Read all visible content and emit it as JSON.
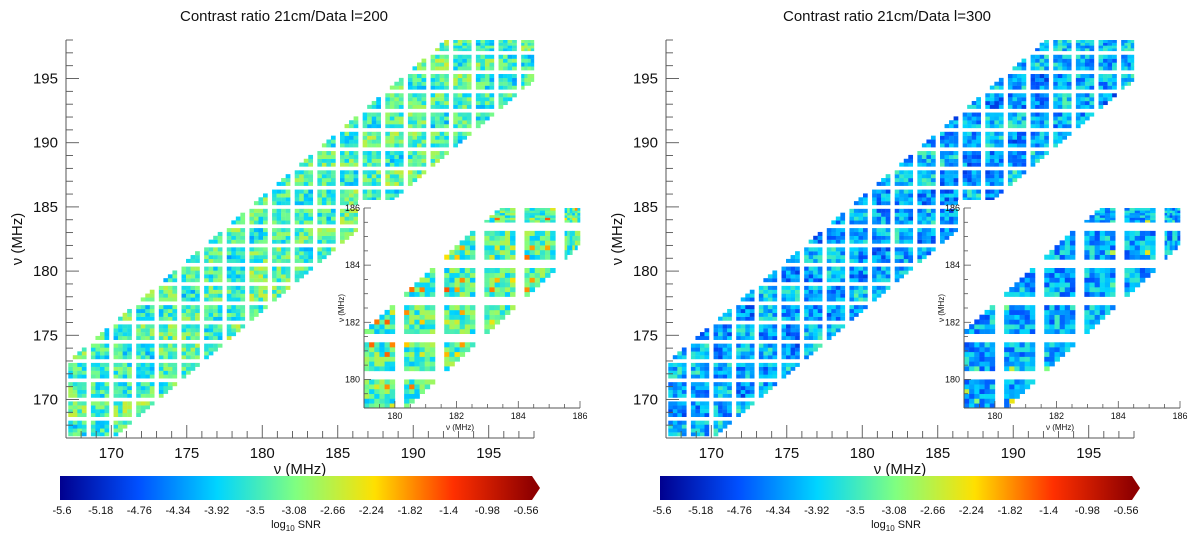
{
  "chart_data": [
    {
      "type": "heatmap",
      "title": "Contrast ratio 21cm/Data l=200",
      "xlabel": "ν (MHz)",
      "ylabel": "ν (MHz)",
      "xlim": [
        167,
        198
      ],
      "ylim": [
        167,
        198
      ],
      "xticks": [
        170,
        175,
        180,
        185,
        190,
        195
      ],
      "yticks": [
        170,
        175,
        180,
        185,
        190,
        195
      ],
      "mean_log10_snr": -3.3,
      "inset": {
        "xlabel": "ν (MHz)",
        "ylabel": "ν (MHz)",
        "xlim": [
          179,
          186
        ],
        "ylim": [
          179,
          186
        ],
        "xticks": [
          180,
          182,
          184,
          186
        ],
        "yticks": [
          180,
          182,
          184,
          186
        ]
      },
      "colorbar": {
        "label": "log10 SNR",
        "range": [
          -5.6,
          -0.35
        ],
        "ticks": [
          "-5.6",
          "-5.18",
          "-4.76",
          "-4.34",
          "-3.92",
          "-3.5",
          "-3.08",
          "-2.66",
          "-2.24",
          "-1.82",
          "-1.4",
          "-0.98",
          "-0.56"
        ],
        "colors": [
          "#00008f",
          "#0050ff",
          "#00d5ff",
          "#80ff80",
          "#ffe000",
          "#ff3000",
          "#8f0000"
        ]
      }
    },
    {
      "type": "heatmap",
      "title": "Contrast ratio 21cm/Data l=300",
      "xlabel": "ν (MHz)",
      "ylabel": "ν (MHz)",
      "xlim": [
        167,
        198
      ],
      "ylim": [
        167,
        198
      ],
      "xticks": [
        170,
        175,
        180,
        185,
        190,
        195
      ],
      "yticks": [
        170,
        175,
        180,
        185,
        190,
        195
      ],
      "mean_log10_snr": -4.1,
      "inset": {
        "xlabel": "ν (MHz)",
        "ylabel": "ν (MHz)",
        "xlim": [
          179,
          186
        ],
        "ylim": [
          179,
          186
        ],
        "xticks": [
          180,
          182,
          184,
          186
        ],
        "yticks": [
          180,
          182,
          184,
          186
        ]
      },
      "colorbar": {
        "label": "log10 SNR",
        "range": [
          -5.6,
          -0.35
        ],
        "ticks": [
          "-5.6",
          "-5.18",
          "-4.76",
          "-4.34",
          "-3.92",
          "-3.5",
          "-3.08",
          "-2.66",
          "-2.24",
          "-1.82",
          "-1.4",
          "-0.98",
          "-0.56"
        ],
        "colors": [
          "#00008f",
          "#0050ff",
          "#00d5ff",
          "#80ff80",
          "#ffe000",
          "#ff3000",
          "#8f0000"
        ]
      }
    }
  ]
}
